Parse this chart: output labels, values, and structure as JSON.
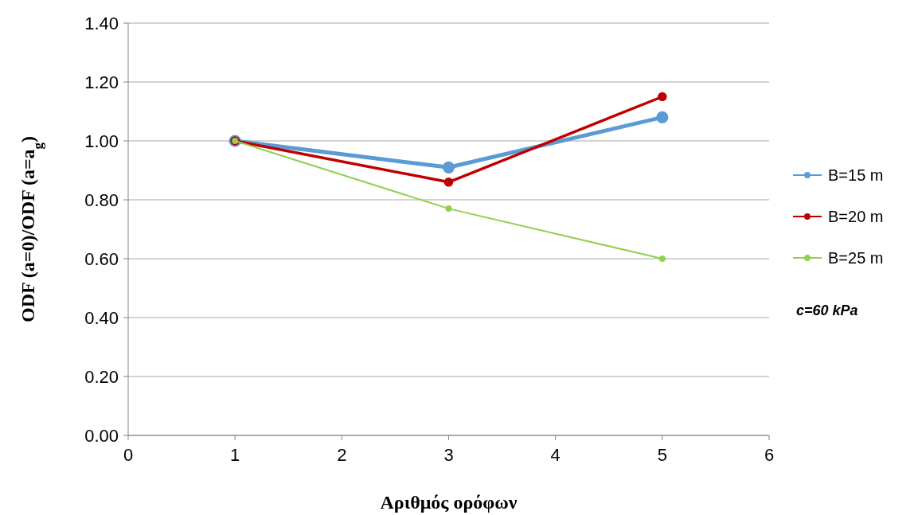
{
  "chart_data": {
    "type": "line",
    "xlabel": "Αριθμός ορόφων",
    "ylabel": "ODF (a=0)/ODF (a=a$_{g}$)",
    "x": [
      1,
      3,
      5
    ],
    "series": [
      {
        "name": "B=15 m",
        "color": "#5b9bd5",
        "values": [
          1.0,
          0.91,
          1.08
        ]
      },
      {
        "name": "B=20 m",
        "color": "#c00000",
        "values": [
          1.0,
          0.86,
          1.15
        ]
      },
      {
        "name": "B=25 m",
        "color": "#92d050",
        "values": [
          1.0,
          0.77,
          0.6
        ]
      }
    ],
    "xlim": [
      0,
      6
    ],
    "xticks": [
      0,
      1,
      2,
      3,
      4,
      5,
      6
    ],
    "ylim": [
      0,
      1.4
    ],
    "yticks": [
      {
        "value": 0,
        "label": "0.00"
      },
      {
        "value": 0.2,
        "label": "0.20"
      },
      {
        "value": 0.4,
        "label": "0.40"
      },
      {
        "value": 0.6,
        "label": "0.60"
      },
      {
        "value": 0.8,
        "label": "0.80"
      },
      {
        "value": 1.0,
        "label": "1.00"
      },
      {
        "value": 1.2,
        "label": "1.20"
      },
      {
        "value": 1.4,
        "label": "1.40"
      }
    ],
    "grid": "y",
    "legend": "right",
    "marker": "circle",
    "line_style": "solid",
    "annotations": [
      "c=60 kPa"
    ]
  }
}
